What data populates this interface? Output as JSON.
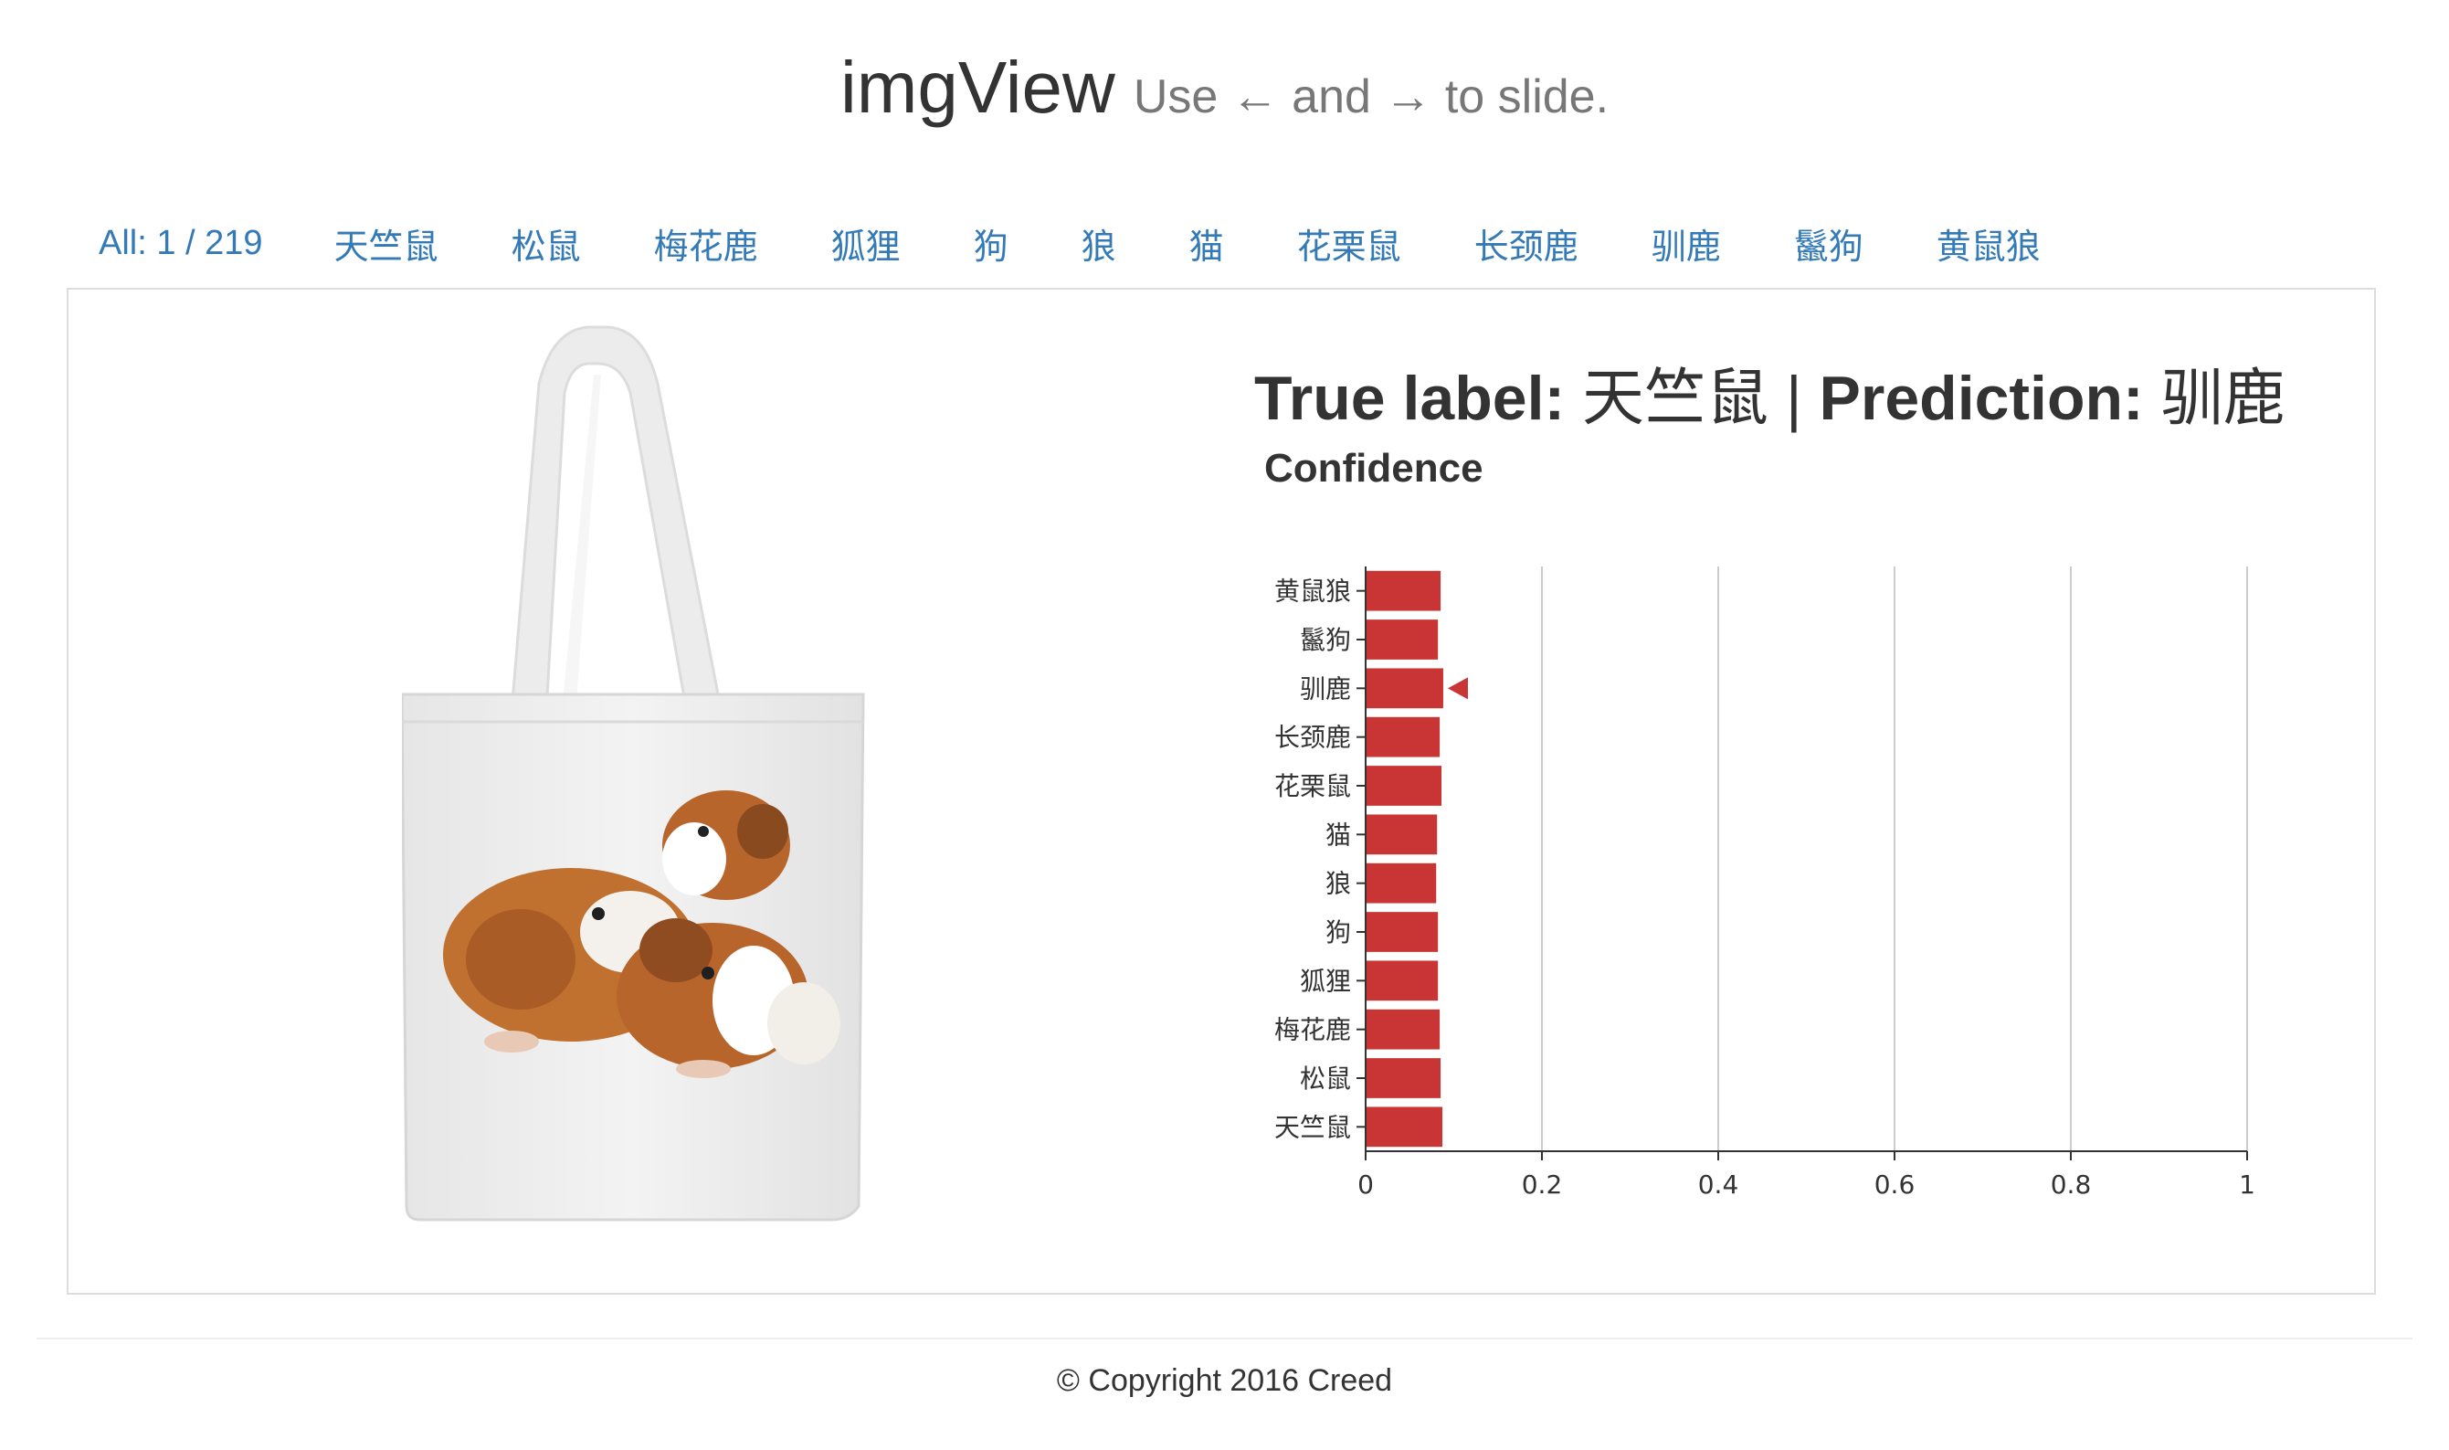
{
  "header": {
    "brand": "imgView",
    "hint": "Use ← and → to slide."
  },
  "nav": {
    "count_label": "All: 1 / 219",
    "categories": [
      "天竺鼠",
      "松鼠",
      "梅花鹿",
      "狐狸",
      "狗",
      "狼",
      "猫",
      "花栗鼠",
      "长颈鹿",
      "驯鹿",
      "鬣狗",
      "黄鼠狼"
    ]
  },
  "result": {
    "true_label_key": "True label:",
    "true_label_value": "天竺鼠",
    "separator": "|",
    "prediction_key": "Prediction:",
    "prediction_value": "驯鹿"
  },
  "confidence_title": "Confidence",
  "chart_data": {
    "type": "bar",
    "orientation": "horizontal",
    "categories": [
      "黄鼠狼",
      "鬣狗",
      "驯鹿",
      "长颈鹿",
      "花栗鼠",
      "猫",
      "狼",
      "狗",
      "狐狸",
      "梅花鹿",
      "松鼠",
      "天竺鼠"
    ],
    "values": [
      0.084,
      0.081,
      0.087,
      0.083,
      0.085,
      0.08,
      0.079,
      0.081,
      0.081,
      0.083,
      0.084,
      0.086
    ],
    "xlim": [
      0,
      1
    ],
    "x_ticks": [
      "0",
      "0.2",
      "0.4",
      "0.6",
      "0.8",
      "1"
    ],
    "grid": true,
    "highlighted_category": "驯鹿",
    "bar_color": "#c93534",
    "grid_color": "#cccccc"
  },
  "image": {
    "subject_icon": "guinea-pig-tote-bag-image"
  },
  "footer": {
    "copyright": "© Copyright 2016 Creed"
  }
}
